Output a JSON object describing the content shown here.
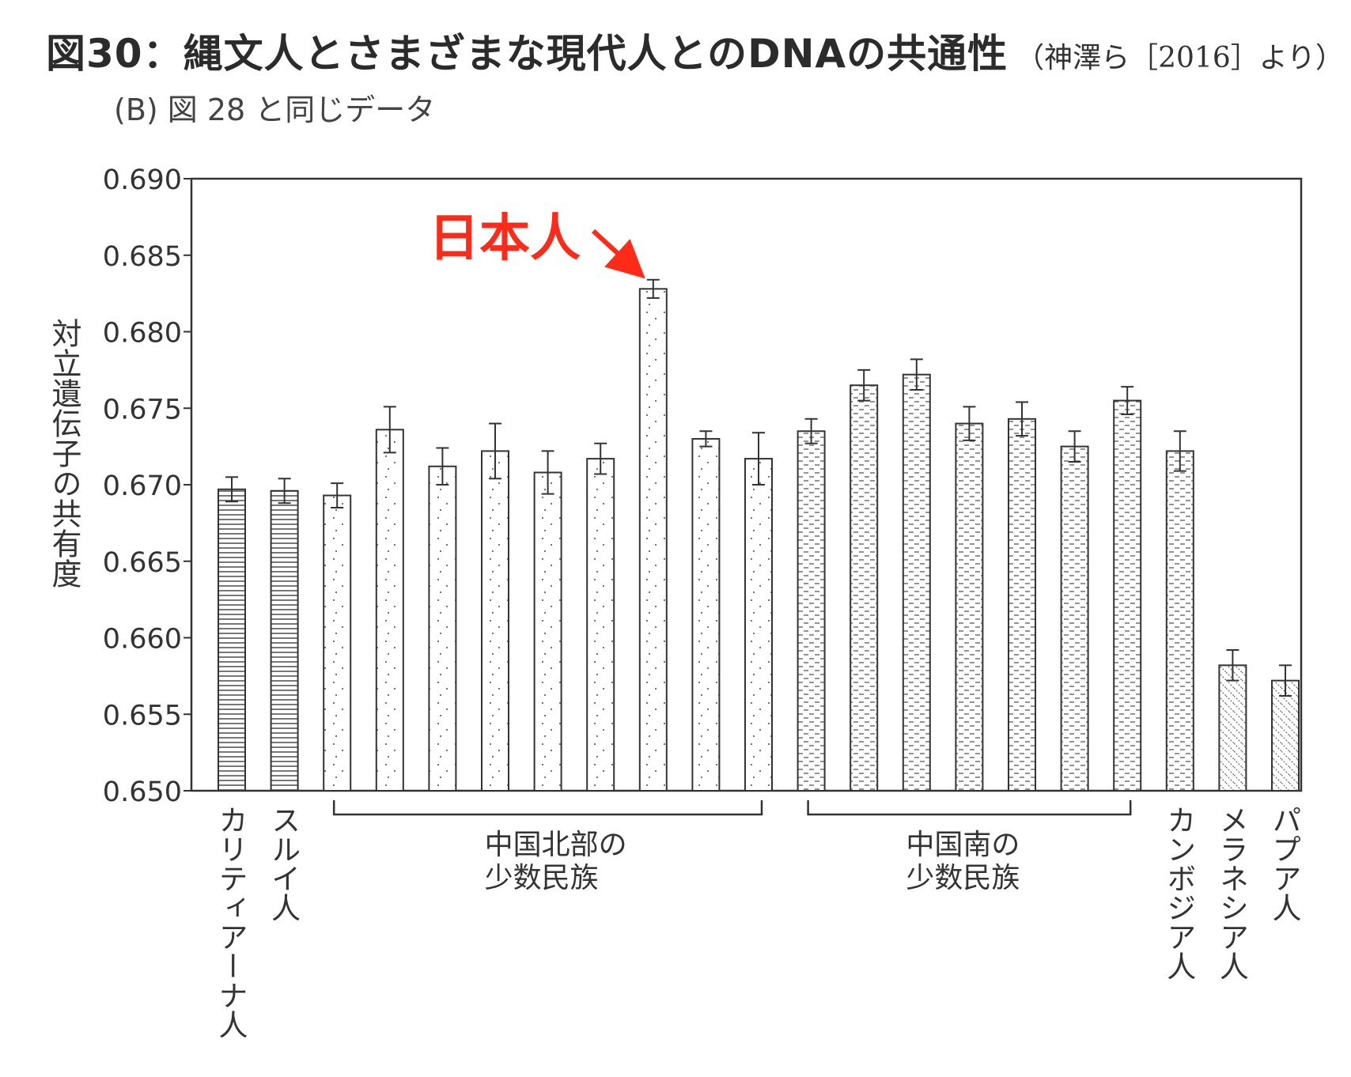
{
  "title": "図30：縄文人とさまざまな現代人とのDNAの共通性",
  "title_source": "（神澤ら［2016］より）",
  "subtitle": "(B) 図 28 と同じデータ",
  "annotation": "日本人",
  "chart_data": {
    "type": "bar",
    "ylabel": "対立遺伝子の共有度",
    "ylim": [
      0.65,
      0.69
    ],
    "yticks": [
      "0.690",
      "0.685",
      "0.680",
      "0.675",
      "0.670",
      "0.665",
      "0.660",
      "0.655",
      "0.650"
    ],
    "bars": [
      {
        "value": 0.6697,
        "err": 0.0008,
        "pattern": "hlines"
      },
      {
        "value": 0.6696,
        "err": 0.0008,
        "pattern": "hlines"
      },
      {
        "value": 0.6693,
        "err": 0.0008,
        "pattern": "dots"
      },
      {
        "value": 0.6736,
        "err": 0.0015,
        "pattern": "dots"
      },
      {
        "value": 0.6712,
        "err": 0.0012,
        "pattern": "dots"
      },
      {
        "value": 0.6722,
        "err": 0.0018,
        "pattern": "dots"
      },
      {
        "value": 0.6708,
        "err": 0.0014,
        "pattern": "dots"
      },
      {
        "value": 0.6717,
        "err": 0.001,
        "pattern": "dots"
      },
      {
        "value": 0.6828,
        "err": 0.0006,
        "pattern": "dots"
      },
      {
        "value": 0.673,
        "err": 0.0005,
        "pattern": "dots"
      },
      {
        "value": 0.6717,
        "err": 0.0017,
        "pattern": "dots"
      },
      {
        "value": 0.6735,
        "err": 0.0008,
        "pattern": "dashes"
      },
      {
        "value": 0.6765,
        "err": 0.001,
        "pattern": "dashes"
      },
      {
        "value": 0.6772,
        "err": 0.001,
        "pattern": "dashes"
      },
      {
        "value": 0.674,
        "err": 0.0011,
        "pattern": "dashes"
      },
      {
        "value": 0.6743,
        "err": 0.0011,
        "pattern": "dashes"
      },
      {
        "value": 0.6725,
        "err": 0.001,
        "pattern": "dashes"
      },
      {
        "value": 0.6755,
        "err": 0.0009,
        "pattern": "dashes"
      },
      {
        "value": 0.6722,
        "err": 0.0013,
        "pattern": "dashes"
      },
      {
        "value": 0.6582,
        "err": 0.001,
        "pattern": "diag"
      },
      {
        "value": 0.6572,
        "err": 0.001,
        "pattern": "diag"
      }
    ],
    "category_labels": [
      {
        "label": "カリティアーナ人",
        "bar": 0
      },
      {
        "label": "スルイ人",
        "bar": 1
      },
      {
        "label": "カンボジア人",
        "bar": 18
      },
      {
        "label": "メラネシア人",
        "bar": 19
      },
      {
        "label": "パプア人",
        "bar": 20
      }
    ],
    "groups": [
      {
        "label": "中国北部の\n少数民族",
        "from": 2,
        "to": 10
      },
      {
        "label": "中国南の\n少数民族",
        "from": 11,
        "to": 17
      }
    ],
    "highlight_bar": 8
  }
}
